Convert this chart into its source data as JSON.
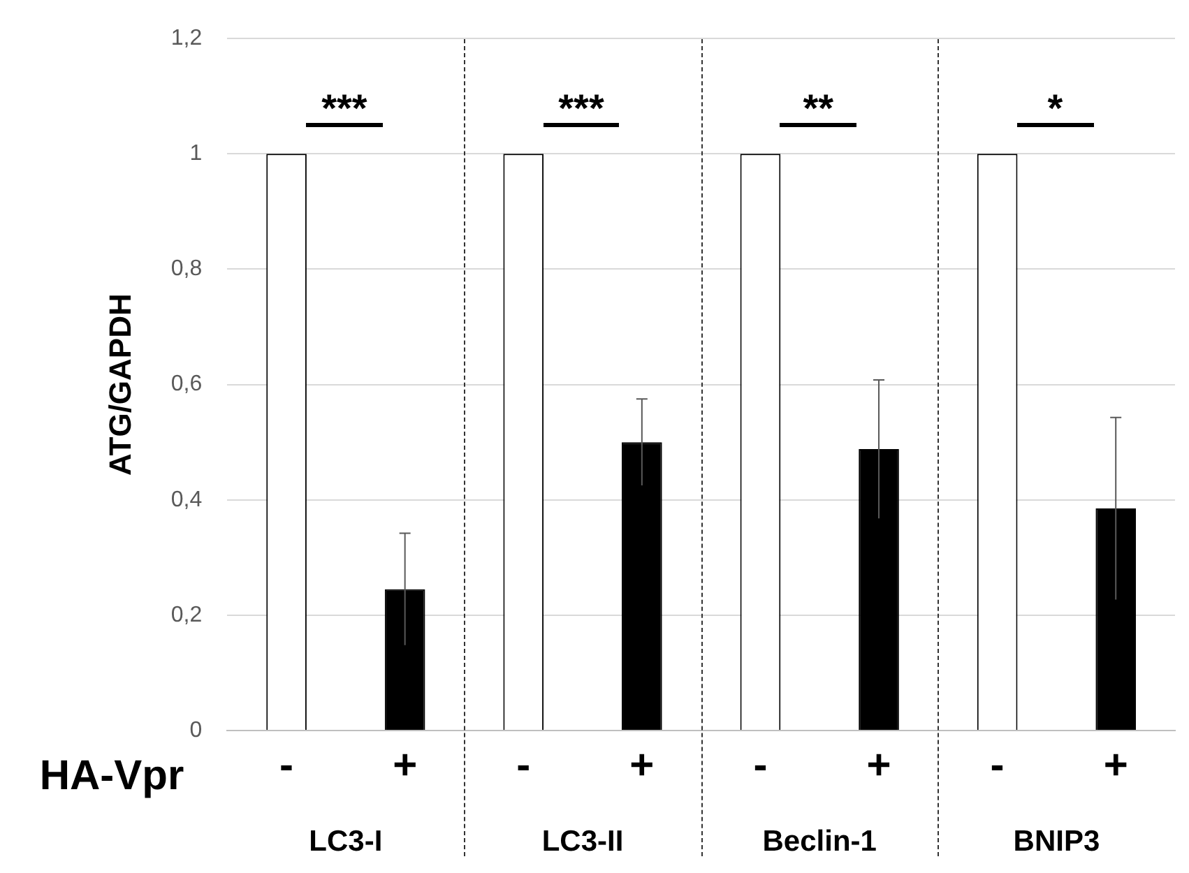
{
  "chart_data": {
    "type": "bar",
    "ylabel": "ATG/GAPDH",
    "categories": [
      "-",
      "+",
      "-",
      "+",
      "-",
      "+",
      "-",
      "+"
    ],
    "values": [
      1,
      0.245,
      1,
      0.5,
      1,
      0.488,
      1,
      0.385
    ],
    "colors": [
      "#ffffff",
      "#000000",
      "#ffffff",
      "#000000",
      "#ffffff",
      "#000000",
      "#ffffff",
      "#000000"
    ],
    "errors": [
      null,
      0.097,
      null,
      0.075,
      null,
      0.12,
      null,
      0.158
    ],
    "ylim": [
      0,
      1.2
    ],
    "yticks": [
      0,
      {
        "value": 0.2,
        "label": "0,2"
      },
      {
        "value": 0.4,
        "label": "0,4"
      },
      {
        "value": 0.6,
        "label": "0,6"
      },
      {
        "value": 0.8,
        "label": "0,8"
      },
      1,
      {
        "value": 1.2,
        "label": "1,2"
      }
    ],
    "grid": "y",
    "legend": false,
    "annotations": [
      "***",
      "***",
      "**",
      "*",
      "LC3-I",
      "LC3-II",
      "Beclin-1",
      "BNIP3",
      "HA-Vpr"
    ]
  }
}
